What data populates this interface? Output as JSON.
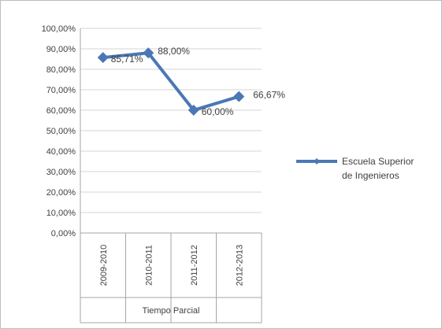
{
  "chart_data": {
    "type": "line",
    "title": "",
    "xlabel": "Tiempo Parcial",
    "ylabel": "",
    "ylim": [
      0,
      100
    ],
    "y_tick_step": 10,
    "y_ticks": [
      "0,00%",
      "10,00%",
      "20,00%",
      "30,00%",
      "40,00%",
      "50,00%",
      "60,00%",
      "70,00%",
      "80,00%",
      "90,00%",
      "100,00%"
    ],
    "categories": [
      "2009-2010",
      "2010-2011",
      "2011-2012",
      "2012-2013"
    ],
    "series": [
      {
        "name": "Escuela Superior de Ingenieros",
        "legend_lines": [
          "Escuela Superior",
          "de Ingenieros"
        ],
        "values": [
          85.71,
          88.0,
          60.0,
          66.67
        ],
        "labels": [
          "85,71%",
          "88,00%",
          "60,00%",
          "66,67%"
        ],
        "color": "#4a78b5"
      }
    ],
    "grid": true,
    "legend_position": "right"
  }
}
